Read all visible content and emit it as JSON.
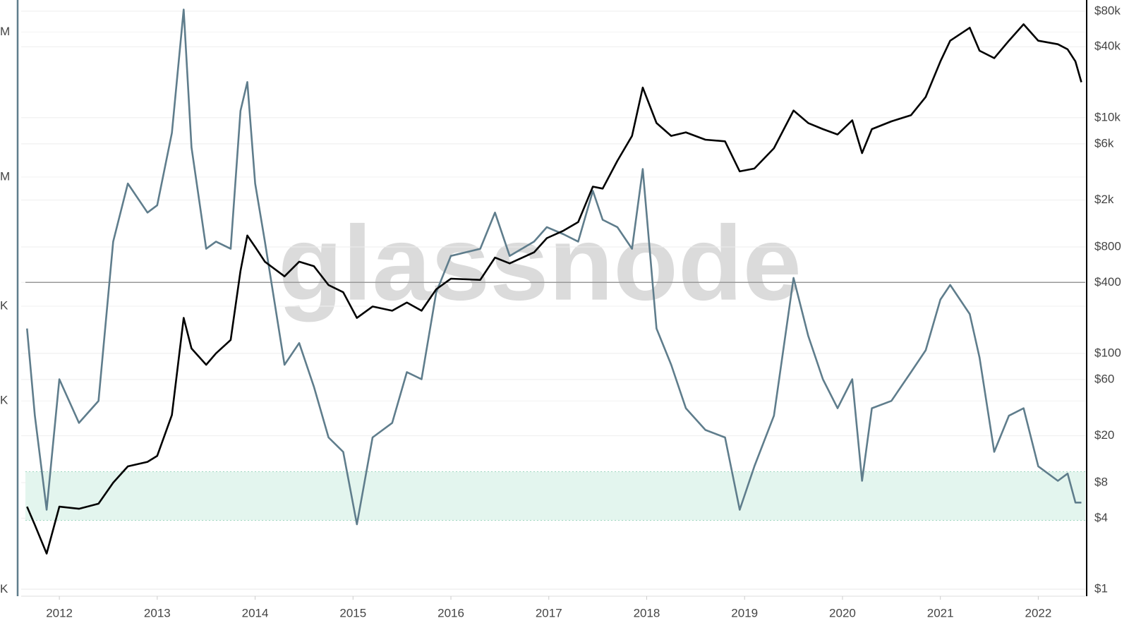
{
  "chart_data": {
    "type": "line",
    "watermark": "glassnode",
    "x": [
      2011.67,
      2011.75,
      2011.87,
      2012.0,
      2012.2,
      2012.4,
      2012.55,
      2012.7,
      2012.9,
      2013.0,
      2013.15,
      2013.27,
      2013.35,
      2013.5,
      2013.6,
      2013.75,
      2013.85,
      2013.92,
      2014.0,
      2014.1,
      2014.3,
      2014.45,
      2014.6,
      2014.75,
      2014.9,
      2015.04,
      2015.2,
      2015.4,
      2015.55,
      2015.7,
      2015.85,
      2016.0,
      2016.3,
      2016.45,
      2016.6,
      2016.85,
      2016.98,
      2017.15,
      2017.3,
      2017.45,
      2017.55,
      2017.7,
      2017.85,
      2017.96,
      2018.1,
      2018.25,
      2018.4,
      2018.6,
      2018.8,
      2018.95,
      2019.1,
      2019.3,
      2019.5,
      2019.65,
      2019.8,
      2019.95,
      2020.1,
      2020.2,
      2020.3,
      2020.5,
      2020.7,
      2020.85,
      2021.0,
      2021.1,
      2021.3,
      2021.4,
      2021.55,
      2021.7,
      2021.85,
      2022.0,
      2022.2,
      2022.3,
      2022.38,
      2022.44
    ],
    "series": [
      {
        "color": "#000000",
        "axis": "y2",
        "values": [
          5,
          3.5,
          2,
          5,
          4.8,
          5.3,
          8,
          11,
          12,
          13.5,
          30,
          200,
          110,
          80,
          100,
          130,
          500,
          1000,
          800,
          600,
          450,
          600,
          550,
          380,
          330,
          200,
          250,
          230,
          270,
          230,
          350,
          430,
          420,
          650,
          580,
          720,
          950,
          1100,
          1300,
          2600,
          2500,
          4300,
          7000,
          18000,
          9000,
          7000,
          7500,
          6500,
          6300,
          3500,
          3700,
          5500,
          11500,
          9000,
          8000,
          7200,
          9500,
          5000,
          8000,
          9300,
          10500,
          15000,
          30000,
          45000,
          58000,
          37000,
          32000,
          45000,
          62000,
          45000,
          42000,
          38000,
          30000,
          20000
        ]
      },
      {
        "color": "#5f7d8c",
        "axis": "y",
        "values": [
          631000,
          158000,
          35500,
          282000,
          141000,
          200000,
          2510000,
          6310000,
          3980000,
          4470000,
          14100000,
          100000000,
          11200000,
          2240000,
          2510000,
          2240000,
          20000000,
          31600000,
          6310000,
          2510000,
          355000,
          501000,
          251000,
          112000,
          89000,
          28200,
          112000,
          141000,
          316000,
          282000,
          1120000,
          2000000,
          2240000,
          3980000,
          2000000,
          2510000,
          3160000,
          2820000,
          2510000,
          5620000,
          3550000,
          3160000,
          2240000,
          7940000,
          631000,
          355000,
          178000,
          126000,
          112000,
          35500,
          70800,
          158000,
          1410000,
          562000,
          282000,
          178000,
          282000,
          56200,
          178000,
          200000,
          316000,
          447000,
          1000000,
          1260000,
          794000,
          398000,
          89100,
          158000,
          178000,
          70800,
          56200,
          63100,
          39800,
          39800
        ]
      }
    ],
    "xlim": [
      2011.61,
      2022.48
    ],
    "xticks": [
      2012,
      2013,
      2014,
      2015,
      2016,
      2017,
      2018,
      2019,
      2020,
      2021,
      2022
    ],
    "yscale": "log",
    "ylim": [
      9000,
      110000000
    ],
    "yticks": [
      {
        "value": 10000,
        "label": "K"
      },
      {
        "value": 200000,
        "label": "K"
      },
      {
        "value": 900000,
        "label": "K"
      },
      {
        "value": 7000000,
        "label": "M"
      },
      {
        "value": 70000000,
        "label": "M"
      }
    ],
    "y2scale": "log",
    "y2lim": [
      0.87,
      93000
    ],
    "y2ticks": [
      {
        "value": 1,
        "label": "$1"
      },
      {
        "value": 4,
        "label": "$4"
      },
      {
        "value": 8,
        "label": "$8"
      },
      {
        "value": 20,
        "label": "$20"
      },
      {
        "value": 60,
        "label": "$60"
      },
      {
        "value": 100,
        "label": "$100"
      },
      {
        "value": 400,
        "label": "$400"
      },
      {
        "value": 800,
        "label": "$800"
      },
      {
        "value": 2000,
        "label": "$2k"
      },
      {
        "value": 6000,
        "label": "$6k"
      },
      {
        "value": 10000,
        "label": "$10k"
      },
      {
        "value": 40000,
        "label": "$40k"
      },
      {
        "value": 80000,
        "label": "$80k"
      }
    ],
    "grid": true,
    "band": {
      "axis": "y",
      "range": [
        30000,
        65000
      ],
      "color": "#e3f5ee"
    },
    "hline": {
      "axis": "y2",
      "value": 400,
      "color": "#999999"
    }
  }
}
